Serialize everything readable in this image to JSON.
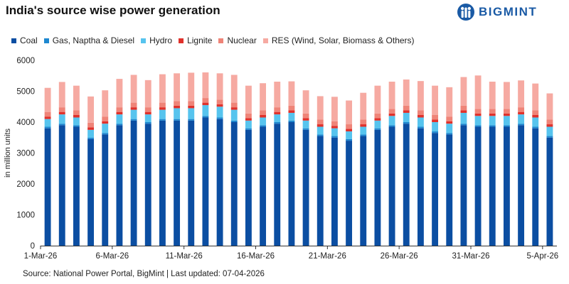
{
  "brand": {
    "name": "BIGMINT",
    "color": "#1a5aa5",
    "icon": "bigmint-figures-logo"
  },
  "source_note": "Source: National Power Portal, BigMint | Last updated: 07-04-2026",
  "chart_data": {
    "type": "bar",
    "stacked": true,
    "title": "India's source wise power generation",
    "ylabel": "in million units",
    "xlabel": "",
    "ylim": [
      0,
      6000
    ],
    "yticks": [
      0,
      1000,
      2000,
      3000,
      4000,
      5000,
      6000
    ],
    "grid": false,
    "legend_position": "top-left",
    "categories": [
      "1-Mar-26",
      "2-Mar-26",
      "3-Mar-26",
      "4-Mar-26",
      "5-Mar-26",
      "6-Mar-26",
      "7-Mar-26",
      "8-Mar-26",
      "9-Mar-26",
      "10-Mar-26",
      "11-Mar-26",
      "12-Mar-26",
      "13-Mar-26",
      "14-Mar-26",
      "15-Mar-26",
      "16-Mar-26",
      "17-Mar-26",
      "18-Mar-26",
      "19-Mar-26",
      "20-Mar-26",
      "21-Mar-26",
      "22-Mar-26",
      "23-Mar-26",
      "24-Mar-26",
      "25-Mar-26",
      "26-Mar-26",
      "27-Mar-26",
      "28-Mar-26",
      "29-Mar-26",
      "30-Mar-26",
      "31-Mar-26",
      "1-Apr-26",
      "2-Apr-26",
      "3-Apr-26",
      "4-Apr-26",
      "5-Apr-26"
    ],
    "x_tick_labels": [
      "1-Mar-26",
      "6-Mar-26",
      "11-Mar-26",
      "16-Mar-26",
      "21-Mar-26",
      "26-Mar-26",
      "31-Mar-26",
      "5-Apr-26"
    ],
    "series": [
      {
        "name": "Coal",
        "color": "#0b4ea2",
        "values": [
          3800,
          3900,
          3850,
          3450,
          3600,
          3900,
          4050,
          3950,
          4050,
          4050,
          4050,
          4150,
          4100,
          4000,
          3750,
          3850,
          3950,
          4000,
          3750,
          3550,
          3500,
          3400,
          3550,
          3750,
          3850,
          3950,
          3800,
          3650,
          3600,
          3900,
          3850,
          3850,
          3850,
          3900,
          3800,
          3500
        ]
      },
      {
        "name": "Gas, Naptha & Diesel",
        "color": "#1e88d0",
        "values": [
          50,
          50,
          50,
          50,
          50,
          50,
          50,
          50,
          50,
          50,
          50,
          50,
          50,
          50,
          50,
          50,
          50,
          50,
          50,
          50,
          50,
          50,
          50,
          50,
          50,
          50,
          50,
          50,
          50,
          50,
          50,
          50,
          50,
          50,
          50,
          50
        ]
      },
      {
        "name": "Hydro",
        "color": "#57c4ee",
        "values": [
          250,
          300,
          250,
          250,
          300,
          300,
          300,
          250,
          300,
          350,
          350,
          350,
          350,
          350,
          250,
          250,
          250,
          250,
          250,
          250,
          250,
          250,
          250,
          250,
          300,
          300,
          300,
          300,
          300,
          350,
          300,
          300,
          300,
          300,
          300,
          300
        ]
      },
      {
        "name": "Lignite",
        "color": "#e0312b",
        "values": [
          80,
          80,
          80,
          80,
          80,
          80,
          80,
          80,
          80,
          80,
          80,
          80,
          80,
          80,
          80,
          80,
          80,
          80,
          80,
          80,
          80,
          80,
          80,
          80,
          80,
          80,
          80,
          80,
          80,
          80,
          80,
          80,
          80,
          80,
          80,
          80
        ]
      },
      {
        "name": "Nuclear",
        "color": "#ef8478",
        "values": [
          150,
          150,
          150,
          150,
          150,
          150,
          150,
          150,
          150,
          150,
          150,
          150,
          150,
          150,
          150,
          150,
          150,
          150,
          150,
          150,
          150,
          150,
          150,
          150,
          150,
          150,
          150,
          150,
          150,
          150,
          150,
          150,
          150,
          150,
          150,
          150
        ]
      },
      {
        "name": "RES (Wind, Solar, Biomass & Others)",
        "color": "#f6aaa2",
        "values": [
          780,
          820,
          800,
          850,
          850,
          920,
          900,
          880,
          920,
          900,
          920,
          830,
          850,
          900,
          900,
          880,
          830,
          790,
          750,
          760,
          790,
          770,
          870,
          900,
          880,
          850,
          950,
          950,
          950,
          930,
          1080,
          880,
          870,
          870,
          870,
          850
        ]
      }
    ]
  }
}
